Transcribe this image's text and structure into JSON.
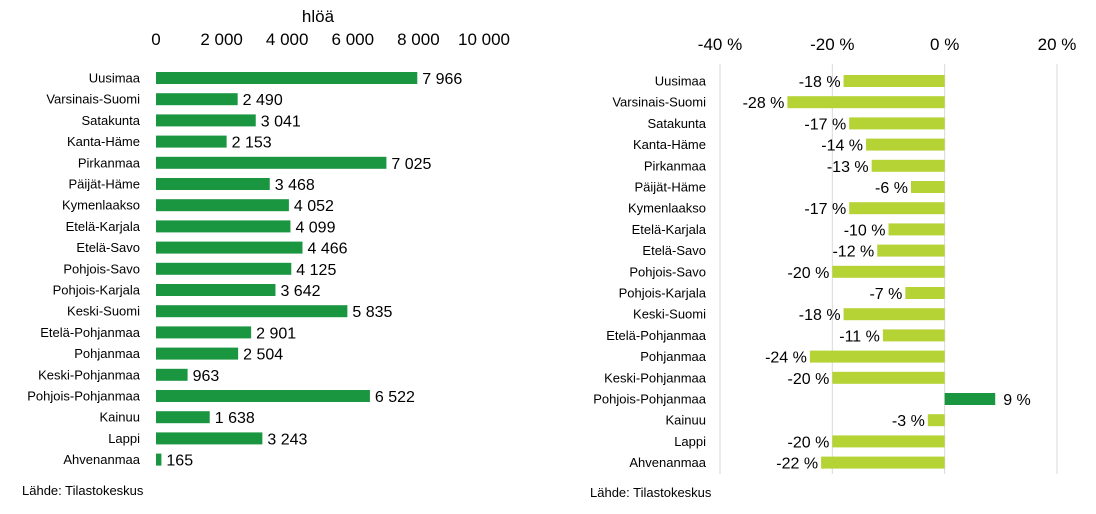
{
  "chart_data": [
    {
      "type": "bar",
      "orientation": "horizontal",
      "unit_label": "hlöä",
      "categories": [
        "Uusimaa",
        "Varsinais-Suomi",
        "Satakunta",
        "Kanta-Häme",
        "Pirkanmaa",
        "Päijät-Häme",
        "Kymenlaakso",
        "Etelä-Karjala",
        "Etelä-Savo",
        "Pohjois-Savo",
        "Pohjois-Karjala",
        "Keski-Suomi",
        "Etelä-Pohjanmaa",
        "Pohjanmaa",
        "Keski-Pohjanmaa",
        "Pohjois-Pohjanmaa",
        "Kainuu",
        "Lappi",
        "Ahvenanmaa"
      ],
      "values": [
        7966,
        2490,
        3041,
        2153,
        7025,
        3468,
        4052,
        4099,
        4466,
        4125,
        3642,
        5835,
        2901,
        2504,
        963,
        6522,
        1638,
        3243,
        165
      ],
      "value_labels": [
        "7 966",
        "2 490",
        "3 041",
        "2 153",
        "7 025",
        "3 468",
        "4 052",
        "4 099",
        "4 466",
        "4 125",
        "3 642",
        "5 835",
        "2 901",
        "2 504",
        "963",
        "6 522",
        "1 638",
        "3 243",
        "165"
      ],
      "xlim": [
        0,
        10000
      ],
      "ticks": [
        0,
        2000,
        4000,
        6000,
        8000,
        10000
      ],
      "tick_labels": [
        "0",
        "2 000",
        "4 000",
        "6 000",
        "8 000",
        "10 000"
      ],
      "axis_position": "top",
      "grid": false,
      "color": "#1a9641",
      "source": "Lähde: Tilastokeskus"
    },
    {
      "type": "bar",
      "orientation": "horizontal",
      "categories": [
        "Uusimaa",
        "Varsinais-Suomi",
        "Satakunta",
        "Kanta-Häme",
        "Pirkanmaa",
        "Päijät-Häme",
        "Kymenlaakso",
        "Etelä-Karjala",
        "Etelä-Savo",
        "Pohjois-Savo",
        "Pohjois-Karjala",
        "Keski-Suomi",
        "Etelä-Pohjanmaa",
        "Pohjanmaa",
        "Keski-Pohjanmaa",
        "Pohjois-Pohjanmaa",
        "Kainuu",
        "Lappi",
        "Ahvenanmaa"
      ],
      "values": [
        -18,
        -28,
        -17,
        -14,
        -13,
        -6,
        -17,
        -10,
        -12,
        -20,
        -7,
        -18,
        -11,
        -24,
        -20,
        9,
        -3,
        -20,
        -22
      ],
      "value_labels": [
        "-18 %",
        "-28 %",
        "-17 %",
        "-14 %",
        "-13 %",
        "-6 %",
        "-17 %",
        "-10 %",
        "-12 %",
        "-20 %",
        "-7 %",
        "-18 %",
        "-11 %",
        "-24 %",
        "-20 %",
        "9 %",
        "-3 %",
        "-20 %",
        "-22 %"
      ],
      "xlim": [
        -40,
        20
      ],
      "ticks": [
        -40,
        -20,
        0,
        20
      ],
      "tick_labels": [
        "-40 %",
        "-20 %",
        "0 %",
        "20 %"
      ],
      "axis_position": "top",
      "grid": true,
      "negative_color": "#b5d334",
      "positive_color": "#1a9641",
      "source": "Lähde: Tilastokeskus"
    }
  ]
}
